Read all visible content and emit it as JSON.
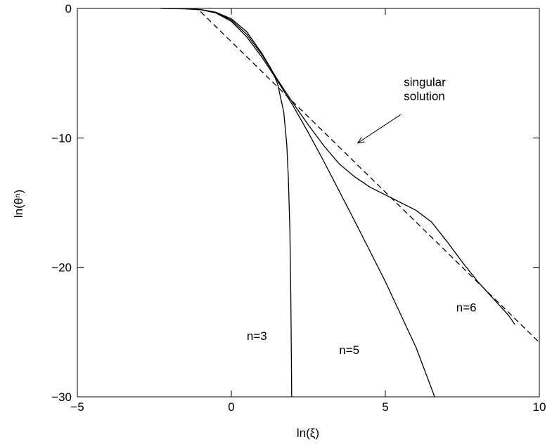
{
  "chart_data": {
    "type": "line",
    "xlabel": "ln(ξ)",
    "ylabel": "ln(θⁿ)",
    "xlim": [
      -5,
      10
    ],
    "ylim": [
      -30,
      0
    ],
    "x_ticks": [
      -5,
      0,
      5,
      10
    ],
    "y_ticks": [
      0,
      -10,
      -20,
      -30
    ],
    "x_tick_labels": [
      "−5",
      "0",
      "5",
      "10"
    ],
    "y_tick_labels": [
      "0",
      "−10",
      "−20",
      "−30"
    ],
    "grid": false,
    "series": [
      {
        "name": "n=3",
        "style": "solid",
        "x": [
          -2.3,
          -1.5,
          -1.0,
          -0.5,
          0.0,
          0.5,
          1.0,
          1.3,
          1.5,
          1.7,
          1.8,
          1.85,
          1.9,
          1.93,
          1.95,
          1.96
        ],
        "y": [
          0.0,
          -0.03,
          -0.1,
          -0.3,
          -0.8,
          -1.8,
          -3.5,
          -4.7,
          -5.8,
          -8.0,
          -10.5,
          -13.0,
          -17.0,
          -22.0,
          -27.0,
          -30.0
        ]
      },
      {
        "name": "n=5",
        "style": "solid",
        "x": [
          -2.3,
          -1.5,
          -1.0,
          -0.5,
          0.0,
          0.5,
          1.0,
          1.5,
          2.0,
          2.5,
          3.0,
          3.5,
          4.0,
          5.0,
          6.0,
          6.6
        ],
        "y": [
          0.0,
          -0.02,
          -0.1,
          -0.35,
          -1.0,
          -2.2,
          -3.8,
          -5.6,
          -7.5,
          -9.6,
          -11.8,
          -14.1,
          -16.4,
          -21.1,
          -26.2,
          -30.0
        ]
      },
      {
        "name": "n=6",
        "style": "solid",
        "x": [
          -2.3,
          -1.5,
          -1.0,
          -0.5,
          0.0,
          0.5,
          1.0,
          1.5,
          2.0,
          2.5,
          3.0,
          3.5,
          4.0,
          4.5,
          5.0,
          5.5,
          6.0,
          6.5,
          7.0,
          7.5,
          8.0,
          8.5,
          9.0,
          9.2
        ],
        "y": [
          0.0,
          -0.02,
          -0.08,
          -0.3,
          -0.9,
          -2.0,
          -3.6,
          -5.5,
          -7.3,
          -9.0,
          -10.6,
          -12.0,
          -13.0,
          -13.8,
          -14.4,
          -15.0,
          -15.6,
          -16.5,
          -18.0,
          -19.6,
          -21.1,
          -22.4,
          -23.7,
          -24.4
        ]
      },
      {
        "name": "singular solution",
        "style": "dashed",
        "x": [
          -1.0,
          10.0
        ],
        "y": [
          -0.25,
          -25.8
        ]
      }
    ],
    "annotations": [
      {
        "text": "singular solution",
        "x": 5.6,
        "y": -6.0
      },
      {
        "text": "n=3",
        "x": 0.5,
        "y": -25.6
      },
      {
        "text": "n=5",
        "x": 3.5,
        "y": -26.7
      },
      {
        "text": "n=6",
        "x": 7.3,
        "y": -23.4
      }
    ],
    "arrow": {
      "from": [
        5.5,
        -8.2
      ],
      "to": [
        4.1,
        -10.4
      ]
    }
  }
}
